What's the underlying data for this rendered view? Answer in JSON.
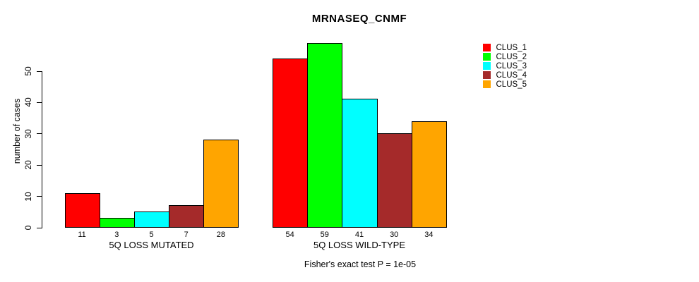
{
  "title": "MRNASEQ_CNMF",
  "caption": "Fisher's exact test P = 1e-05",
  "chart_data": {
    "type": "bar",
    "title": "MRNASEQ_CNMF",
    "xlabel": "",
    "ylabel": "number of cases",
    "yticks": [
      0,
      10,
      20,
      30,
      40,
      50
    ],
    "ylim": [
      0,
      59
    ],
    "grid": false,
    "legend_position": "right-outside",
    "annotation": "Fisher's exact test P = 1e-05",
    "categories": [
      "5Q LOSS MUTATED",
      "5Q LOSS WILD-TYPE"
    ],
    "series": [
      {
        "name": "CLUS_1",
        "color": "#FF0000",
        "values": [
          11,
          54
        ]
      },
      {
        "name": "CLUS_2",
        "color": "#00FF00",
        "values": [
          3,
          59
        ]
      },
      {
        "name": "CLUS_3",
        "color": "#00FFFF",
        "values": [
          5,
          41
        ]
      },
      {
        "name": "CLUS_4",
        "color": "#A52A2A",
        "values": [
          7,
          30
        ]
      },
      {
        "name": "CLUS_5",
        "color": "#FFA500",
        "values": [
          28,
          34
        ]
      }
    ],
    "bar_value_labels": {
      "5Q LOSS MUTATED": [
        11,
        3,
        5,
        7,
        28
      ],
      "5Q LOSS WILD-TYPE": [
        54,
        59,
        41,
        30,
        34
      ]
    }
  },
  "legend": {
    "items": [
      {
        "label": "CLUS_1",
        "color": "#FF0000"
      },
      {
        "label": "CLUS_2",
        "color": "#00FF00"
      },
      {
        "label": "CLUS_3",
        "color": "#00FFFF"
      },
      {
        "label": "CLUS_4",
        "color": "#A52A2A"
      },
      {
        "label": "CLUS_5",
        "color": "#FFA500"
      }
    ]
  }
}
